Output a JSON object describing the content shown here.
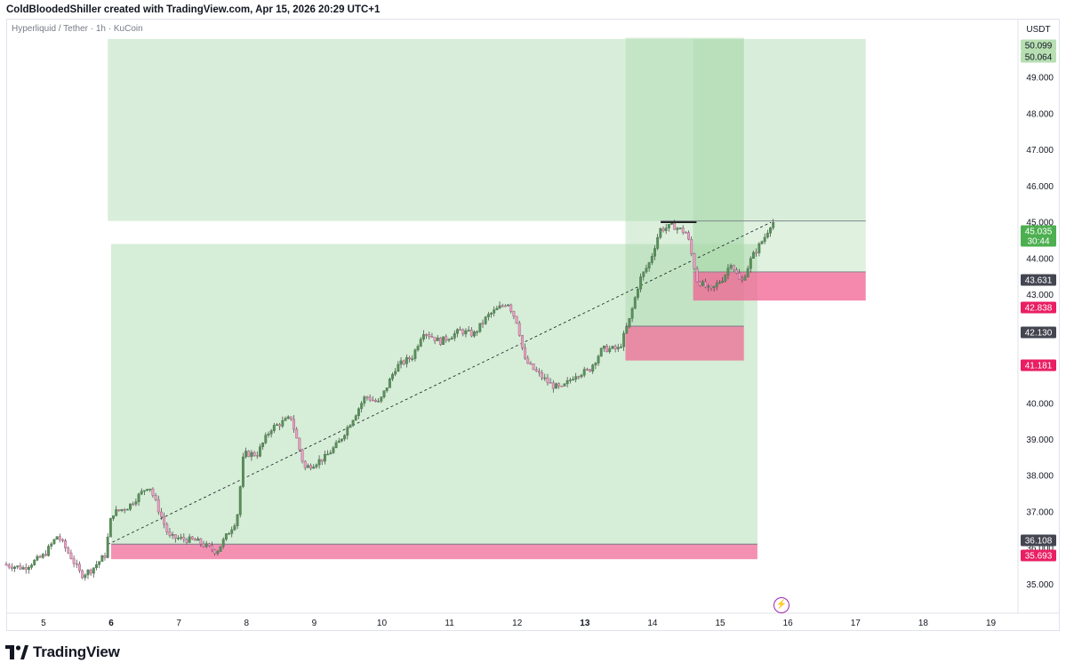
{
  "header": {
    "text": "ColdBloodedShiller created with TradingView.com, Apr 15, 2026 20:29 UTC+1"
  },
  "symbol_line": "Hyperliquid / Tether · 1h · KuCoin",
  "brand": {
    "name": "TradingView"
  },
  "colors": {
    "up": "#26a69a",
    "down": "#ef5350",
    "zone_green": "#a5d6a7",
    "zone_red": "#f06292",
    "price_label": "#4caf50",
    "level_label": "#434651",
    "red_label": "#e91e63"
  },
  "icons": {
    "replay": "lightning-bolt-icon",
    "brand": "tradingview-logo-icon"
  },
  "chart_data": {
    "type": "candlestick",
    "title": "Hyperliquid / Tether · 1h · KuCoin",
    "currency": "USDT",
    "y_axis": {
      "ticks": [
        "35.000",
        "36.000",
        "37.000",
        "38.000",
        "39.000",
        "40.000",
        "41.000",
        "42.000",
        "43.000",
        "44.000",
        "45.000",
        "46.000",
        "47.000",
        "48.000",
        "49.000"
      ],
      "range": [
        34.2,
        50.6
      ],
      "position": "right"
    },
    "x_axis": {
      "ticks": [
        "5",
        "6",
        "7",
        "8",
        "9",
        "10",
        "11",
        "12",
        "13",
        "14",
        "15",
        "16",
        "17",
        "18",
        "19"
      ],
      "range": [
        4.45,
        19.4
      ],
      "bold_ticks": [
        "6",
        "13"
      ],
      "unit": "day (April 2026)"
    },
    "price_labels": [
      {
        "text": "50.099",
        "value": 50.099,
        "style": "green-light"
      },
      {
        "text": "50.064",
        "value": 50.064,
        "style": "green-light"
      },
      {
        "text": "45.035",
        "value": 45.035,
        "style": "last-price"
      },
      {
        "text": "30:44",
        "value": 44.7,
        "style": "countdown"
      },
      {
        "text": "43.631",
        "value": 43.631,
        "style": "dark"
      },
      {
        "text": "42.838",
        "value": 42.838,
        "style": "red"
      },
      {
        "text": "42.130",
        "value": 42.13,
        "style": "dark"
      },
      {
        "text": "41.181",
        "value": 41.181,
        "style": "red"
      },
      {
        "text": "36.108",
        "value": 36.108,
        "style": "dark"
      },
      {
        "text": "35.693",
        "value": 35.693,
        "style": "red"
      }
    ],
    "long_positions": [
      {
        "entry_x": 5.95,
        "end_x": 17.15,
        "entry": 45.035,
        "stop": 42.838,
        "target": 50.064,
        "stop_entry_x": 14.6
      },
      {
        "entry_x": 6.0,
        "end_x": 15.55,
        "entry": 36.108,
        "stop": 35.693,
        "target": 44.4
      },
      {
        "entry_x": 13.6,
        "end_x": 15.35,
        "entry": 42.13,
        "stop": 41.181,
        "target": 50.099
      }
    ],
    "extra_zone": {
      "x1": 14.6,
      "x2": 15.35,
      "y1": 43.631,
      "y2": 50.064
    },
    "trend_line": {
      "x1": 5.95,
      "y1": 36.1,
      "x2": 15.75,
      "y2": 45.0
    },
    "top_marker": {
      "x1": 14.12,
      "x2": 14.65,
      "y": 45.0
    },
    "price_path": [
      [
        4.45,
        35.55
      ],
      [
        4.75,
        35.45
      ],
      [
        5.05,
        35.8
      ],
      [
        5.25,
        36.35
      ],
      [
        5.45,
        35.75
      ],
      [
        5.6,
        35.25
      ],
      [
        5.75,
        35.4
      ],
      [
        5.95,
        35.8
      ],
      [
        6.05,
        36.95
      ],
      [
        6.3,
        37.15
      ],
      [
        6.6,
        37.75
      ],
      [
        6.9,
        36.3
      ],
      [
        7.3,
        36.2
      ],
      [
        7.6,
        35.9
      ],
      [
        7.9,
        36.8
      ],
      [
        8.0,
        38.6
      ],
      [
        8.2,
        38.6
      ],
      [
        8.4,
        39.3
      ],
      [
        8.7,
        39.6
      ],
      [
        8.9,
        38.2
      ],
      [
        9.2,
        38.5
      ],
      [
        9.4,
        38.9
      ],
      [
        9.65,
        39.7
      ],
      [
        9.8,
        40.2
      ],
      [
        10.0,
        40.0
      ],
      [
        10.25,
        41.0
      ],
      [
        10.5,
        41.3
      ],
      [
        10.65,
        42.0
      ],
      [
        10.9,
        41.7
      ],
      [
        11.2,
        42.0
      ],
      [
        11.4,
        41.9
      ],
      [
        11.6,
        42.4
      ],
      [
        11.9,
        42.8
      ],
      [
        12.05,
        42.2
      ],
      [
        12.15,
        41.2
      ],
      [
        12.3,
        40.9
      ],
      [
        12.55,
        40.5
      ],
      [
        12.7,
        40.4
      ],
      [
        12.9,
        40.8
      ],
      [
        13.1,
        40.9
      ],
      [
        13.3,
        41.5
      ],
      [
        13.55,
        41.5
      ],
      [
        13.7,
        42.3
      ],
      [
        13.85,
        43.4
      ],
      [
        14.0,
        43.9
      ],
      [
        14.15,
        44.8
      ],
      [
        14.35,
        44.9
      ],
      [
        14.55,
        44.7
      ],
      [
        14.7,
        43.4
      ],
      [
        14.9,
        43.1
      ],
      [
        15.1,
        43.5
      ],
      [
        15.2,
        43.9
      ],
      [
        15.35,
        43.3
      ],
      [
        15.5,
        44.0
      ],
      [
        15.7,
        44.6
      ],
      [
        15.8,
        45.0
      ]
    ]
  }
}
